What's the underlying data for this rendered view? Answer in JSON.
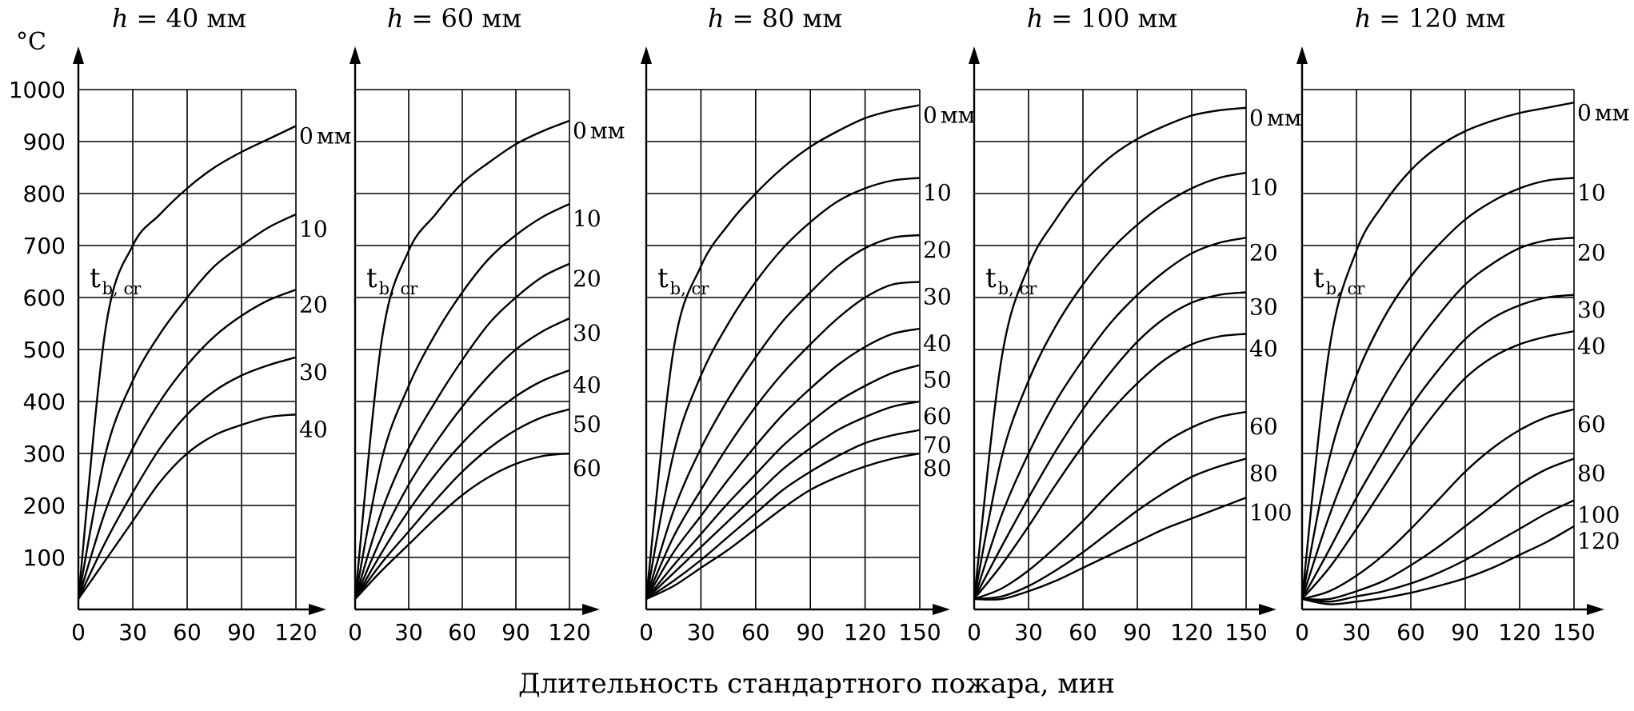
{
  "figure": {
    "unit_label": "°C",
    "x_axis_title": "Длительность стандартного пожара, мин",
    "y_ticks": [
      "1000",
      "900",
      "800",
      "700",
      "600",
      "500",
      "400",
      "300",
      "200",
      "100"
    ],
    "y_values": [
      1000,
      900,
      800,
      700,
      600,
      500,
      400,
      300,
      200,
      100
    ]
  },
  "chart_data": [
    {
      "type": "line",
      "title_h": "h",
      "title_rest": "= 40 мм",
      "xlabel": "Длительность стандартного пожара, мин",
      "ylabel": "°C",
      "xlim": [
        0,
        120
      ],
      "ylim": [
        0,
        1000
      ],
      "x_ticks": [
        "0",
        "30",
        "60",
        "90",
        "120"
      ],
      "x_tick_values": [
        0,
        30,
        60,
        90,
        120
      ],
      "x": [
        0,
        15,
        30,
        45,
        60,
        75,
        90,
        105,
        120
      ],
      "critical_label": "t",
      "critical_sub": "b, cr",
      "series": [
        {
          "name": "0 мм",
          "label": "0",
          "unit": "мм",
          "values": [
            20,
            540,
            700,
            760,
            810,
            850,
            880,
            905,
            930
          ]
        },
        {
          "name": "10",
          "label": "10",
          "values": [
            20,
            300,
            440,
            530,
            600,
            660,
            700,
            735,
            760
          ]
        },
        {
          "name": "20",
          "label": "20",
          "values": [
            20,
            190,
            310,
            400,
            470,
            525,
            565,
            595,
            615
          ]
        },
        {
          "name": "30",
          "label": "30",
          "values": [
            20,
            130,
            225,
            310,
            375,
            420,
            450,
            470,
            485
          ]
        },
        {
          "name": "40",
          "label": "40",
          "values": [
            20,
            95,
            170,
            245,
            300,
            335,
            355,
            370,
            375
          ]
        }
      ]
    },
    {
      "type": "line",
      "title_h": "h",
      "title_rest": "= 60 мм",
      "xlabel": "Длительность стандартного пожара, мин",
      "ylabel": "°C",
      "xlim": [
        0,
        120
      ],
      "ylim": [
        0,
        1000
      ],
      "x_ticks": [
        "0",
        "30",
        "60",
        "90",
        "120"
      ],
      "x_tick_values": [
        0,
        30,
        60,
        90,
        120
      ],
      "x": [
        0,
        15,
        30,
        45,
        60,
        75,
        90,
        105,
        120
      ],
      "critical_label": "t",
      "critical_sub": "b, cr",
      "series": [
        {
          "name": "0 мм",
          "label": "0",
          "unit": "мм",
          "values": [
            20,
            520,
            690,
            760,
            820,
            860,
            895,
            920,
            940
          ]
        },
        {
          "name": "10",
          "label": "10",
          "values": [
            20,
            290,
            430,
            530,
            610,
            675,
            720,
            755,
            780
          ]
        },
        {
          "name": "20",
          "label": "20",
          "values": [
            20,
            190,
            310,
            400,
            480,
            550,
            600,
            640,
            665
          ]
        },
        {
          "name": "30",
          "label": "30",
          "values": [
            20,
            140,
            240,
            320,
            390,
            450,
            500,
            535,
            560
          ]
        },
        {
          "name": "40",
          "label": "40",
          "values": [
            20,
            110,
            190,
            260,
            320,
            370,
            410,
            440,
            460
          ]
        },
        {
          "name": "50",
          "label": "50",
          "values": [
            20,
            90,
            150,
            210,
            265,
            310,
            345,
            370,
            385
          ]
        },
        {
          "name": "60",
          "label": "60",
          "values": [
            20,
            75,
            125,
            175,
            220,
            255,
            280,
            295,
            300
          ]
        }
      ]
    },
    {
      "type": "line",
      "title_h": "h",
      "title_rest": "= 80 мм",
      "xlabel": "Длительность стандартного пожара, мин",
      "ylabel": "°C",
      "xlim": [
        0,
        150
      ],
      "ylim": [
        0,
        1000
      ],
      "x_ticks": [
        "0",
        "30",
        "60",
        "90",
        "120",
        "150"
      ],
      "x_tick_values": [
        0,
        30,
        60,
        90,
        120,
        150
      ],
      "x": [
        0,
        15,
        30,
        45,
        60,
        75,
        90,
        105,
        120,
        135,
        150
      ],
      "critical_label": "t",
      "critical_sub": "b, cr",
      "series": [
        {
          "name": "0 мм",
          "label": "0",
          "unit": "мм",
          "values": [
            20,
            500,
            660,
            740,
            800,
            850,
            890,
            920,
            945,
            960,
            970
          ]
        },
        {
          "name": "10",
          "label": "10",
          "values": [
            20,
            300,
            450,
            550,
            630,
            695,
            745,
            785,
            810,
            825,
            830
          ]
        },
        {
          "name": "20",
          "label": "20",
          "values": [
            20,
            190,
            310,
            405,
            485,
            555,
            610,
            660,
            695,
            715,
            720
          ]
        },
        {
          "name": "30",
          "label": "30",
          "values": [
            20,
            140,
            230,
            315,
            390,
            455,
            510,
            560,
            600,
            625,
            630
          ]
        },
        {
          "name": "40",
          "label": "40",
          "values": [
            20,
            110,
            180,
            250,
            315,
            375,
            425,
            470,
            505,
            530,
            540
          ]
        },
        {
          "name": "50",
          "label": "50",
          "values": [
            20,
            85,
            145,
            205,
            260,
            315,
            360,
            400,
            430,
            455,
            470
          ]
        },
        {
          "name": "60",
          "label": "60",
          "values": [
            20,
            70,
            120,
            170,
            220,
            270,
            310,
            345,
            370,
            390,
            400
          ]
        },
        {
          "name": "70",
          "label": "70",
          "values": [
            20,
            55,
            95,
            140,
            185,
            230,
            265,
            295,
            320,
            335,
            345
          ]
        },
        {
          "name": "80",
          "label": "80",
          "values": [
            20,
            45,
            80,
            115,
            155,
            195,
            230,
            255,
            275,
            290,
            300
          ]
        }
      ]
    },
    {
      "type": "line",
      "title_h": "h",
      "title_rest": "= 100 мм",
      "xlabel": "Длительность стандартного пожара, мин",
      "ylabel": "°C",
      "xlim": [
        0,
        150
      ],
      "ylim": [
        0,
        1000
      ],
      "x_ticks": [
        "0",
        "30",
        "60",
        "90",
        "120",
        "150"
      ],
      "x_tick_values": [
        0,
        30,
        60,
        90,
        120,
        150
      ],
      "x": [
        0,
        15,
        30,
        45,
        60,
        75,
        90,
        105,
        120,
        135,
        150
      ],
      "critical_label": "t",
      "critical_sub": "b, cr",
      "series": [
        {
          "name": "0 мм",
          "label": "0",
          "unit": "мм",
          "values": [
            20,
            480,
            660,
            750,
            820,
            870,
            905,
            930,
            950,
            960,
            965
          ]
        },
        {
          "name": "10",
          "label": "10",
          "values": [
            20,
            290,
            440,
            545,
            625,
            690,
            740,
            780,
            810,
            830,
            840
          ]
        },
        {
          "name": "20",
          "label": "20",
          "values": [
            20,
            180,
            300,
            400,
            480,
            550,
            605,
            650,
            685,
            705,
            715
          ]
        },
        {
          "name": "30",
          "label": "30",
          "values": [
            20,
            120,
            215,
            305,
            385,
            455,
            515,
            560,
            590,
            605,
            610
          ]
        },
        {
          "name": "40",
          "label": "40",
          "values": [
            20,
            85,
            160,
            240,
            315,
            380,
            435,
            480,
            510,
            525,
            530
          ]
        },
        {
          "name": "60",
          "label": "60",
          "values": [
            20,
            40,
            75,
            120,
            170,
            225,
            275,
            320,
            350,
            370,
            380
          ]
        },
        {
          "name": "80",
          "label": "80",
          "values": [
            20,
            25,
            45,
            75,
            110,
            150,
            190,
            225,
            255,
            275,
            290
          ]
        },
        {
          "name": "100",
          "label": "100",
          "values": [
            20,
            20,
            35,
            55,
            80,
            105,
            130,
            155,
            175,
            195,
            215
          ]
        }
      ]
    },
    {
      "type": "line",
      "title_h": "h",
      "title_rest": "= 120 мм",
      "xlabel": "Длительность стандартного пожара, мин",
      "ylabel": "°C",
      "xlim": [
        0,
        150
      ],
      "ylim": [
        0,
        1000
      ],
      "x_ticks": [
        "0",
        "30",
        "60",
        "90",
        "120",
        "150"
      ],
      "x_tick_values": [
        0,
        30,
        60,
        90,
        120,
        150
      ],
      "x": [
        0,
        15,
        30,
        45,
        60,
        75,
        90,
        105,
        120,
        135,
        150
      ],
      "critical_label": "t",
      "critical_sub": "b, cr",
      "series": [
        {
          "name": "0 мм",
          "label": "0",
          "unit": "мм",
          "values": [
            20,
            500,
            690,
            780,
            845,
            890,
            920,
            940,
            955,
            965,
            975
          ]
        },
        {
          "name": "10",
          "label": "10",
          "values": [
            20,
            290,
            450,
            560,
            640,
            700,
            750,
            785,
            810,
            825,
            830
          ]
        },
        {
          "name": "20",
          "label": "20",
          "values": [
            20,
            180,
            310,
            410,
            495,
            565,
            625,
            665,
            695,
            710,
            715
          ]
        },
        {
          "name": "30",
          "label": "30",
          "values": [
            20,
            115,
            215,
            305,
            390,
            460,
            520,
            560,
            585,
            600,
            605
          ]
        },
        {
          "name": "40",
          "label": "40",
          "values": [
            20,
            80,
            155,
            235,
            315,
            385,
            445,
            485,
            510,
            525,
            535
          ]
        },
        {
          "name": "60",
          "label": "60",
          "values": [
            20,
            35,
            65,
            105,
            155,
            210,
            265,
            310,
            345,
            370,
            385
          ]
        },
        {
          "name": "80",
          "label": "80",
          "values": [
            20,
            20,
            35,
            55,
            85,
            120,
            160,
            200,
            240,
            270,
            290
          ]
        },
        {
          "name": "100",
          "label": "100",
          "values": [
            20,
            15,
            25,
            35,
            50,
            70,
            95,
            125,
            155,
            185,
            210
          ]
        },
        {
          "name": "120",
          "label": "120",
          "values": [
            20,
            10,
            15,
            22,
            32,
            45,
            60,
            80,
            105,
            130,
            160
          ]
        }
      ]
    }
  ]
}
